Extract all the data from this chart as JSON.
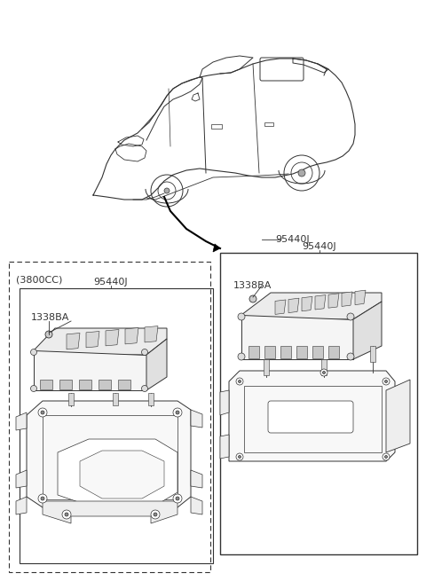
{
  "background_color": "#ffffff",
  "line_color": "#333333",
  "label_95440J_arrow": "95440J",
  "label_95440J_left": "95440J",
  "label_1338BA_right": "1338BA",
  "label_1338BA_left": "1338BA",
  "label_3800cc": "(3800CC)",
  "figsize": [
    4.8,
    6.55
  ],
  "dpi": 100
}
